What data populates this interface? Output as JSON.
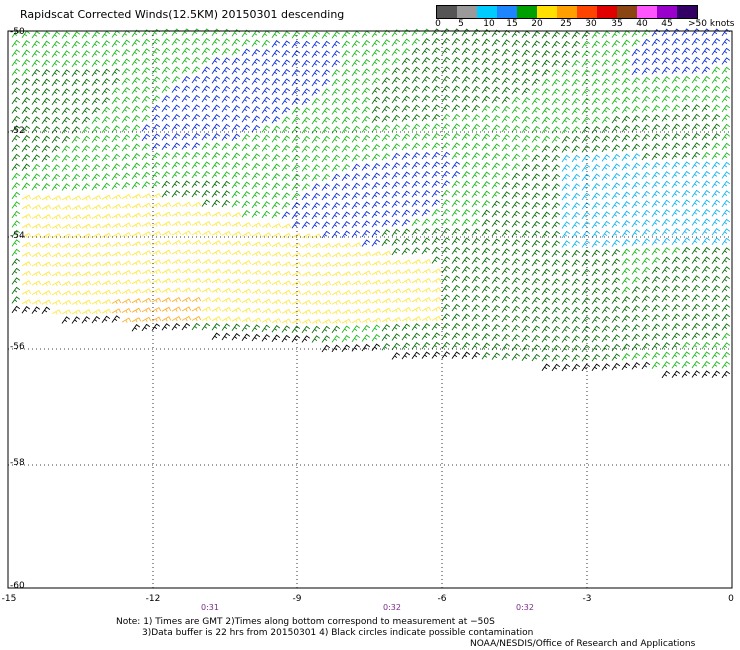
{
  "title": "Rapidscat Corrected Winds(12.5KM) 20150301 descending",
  "legend": {
    "labels": [
      "0",
      "5",
      "10",
      "15",
      "20",
      "25",
      "30",
      "35",
      "40",
      "45"
    ],
    "units": ">50 knots",
    "colors": [
      "#555555",
      "#9a9a9a",
      "#00ccff",
      "#1d85ff",
      "#00a000",
      "#ffe000",
      "#ffa000",
      "#ff4400",
      "#e00000",
      "#8b4513",
      "#ff55ff",
      "#9900cc",
      "#330066"
    ]
  },
  "axes": {
    "lat_labels": [
      "-50",
      "-52",
      "-54",
      "-56",
      "-58",
      "-60"
    ],
    "lon_labels": [
      "-15",
      "-12",
      "-9",
      "-6",
      "-3",
      "0"
    ]
  },
  "time_labels": [
    "0:31",
    "0:32",
    "0:32"
  ],
  "notes": {
    "line1": "Note:  1) Times are GMT  2)Times along bottom correspond to measurement at −50S",
    "line2": "3)Data buffer is 22 hrs from 20150301  4) Black circles indicate possible contamination",
    "line3": "NOAA/NESDIS/Office of Research and Applications"
  }
}
